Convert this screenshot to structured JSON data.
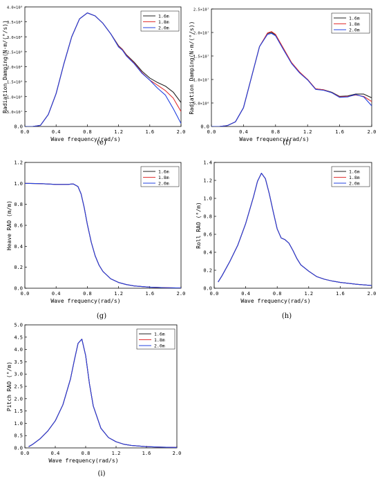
{
  "figure": {
    "colors": {
      "1.6m": "#222222",
      "1.8m": "#e03030",
      "2.0m": "#2040e0"
    }
  },
  "chart_data": [
    {
      "id": "e",
      "type": "line",
      "panel_label": "(e)",
      "xlabel": "Wave frequency(rad/s)",
      "ylabel": "Radiation Damping(N·m/(°/s))",
      "xlim": [
        0,
        2.0
      ],
      "ylim": [
        0,
        400000000.0
      ],
      "xticks": [
        "0.0",
        "0.4",
        "0.8",
        "1.2",
        "1.6",
        "2.0"
      ],
      "yticks": [
        "0.0",
        "5.0×10⁷",
        "1.0×10⁸",
        "1.5×10⁸",
        "2.0×10⁸",
        "2.5×10⁸",
        "3.0×10⁸",
        "3.5×10⁸",
        "4.0×10⁸"
      ],
      "yticks_values": [
        0,
        50000000.0,
        100000000.0,
        150000000.0,
        200000000.0,
        250000000.0,
        300000000.0,
        350000000.0,
        400000000.0
      ],
      "legend": [
        "1.6m",
        "1.8m",
        "2.0m"
      ],
      "legend_position": "top-right",
      "grid": false,
      "series": [
        {
          "name": "1.6m",
          "x": [
            0,
            0.1,
            0.2,
            0.3,
            0.4,
            0.5,
            0.6,
            0.7,
            0.8,
            0.9,
            1.0,
            1.1,
            1.2,
            1.25,
            1.3,
            1.4,
            1.5,
            1.6,
            1.7,
            1.8,
            1.9,
            2.0
          ],
          "y": [
            0,
            0,
            4000000.0,
            40000000.0,
            110000000.0,
            210000000.0,
            300000000.0,
            360000000.0,
            380000000.0,
            370000000.0,
            345000000.0,
            310000000.0,
            270000000.0,
            258000000.0,
            240000000.0,
            215000000.0,
            185000000.0,
            162000000.0,
            147000000.0,
            135000000.0,
            115000000.0,
            80000000.0
          ]
        },
        {
          "name": "1.8m",
          "x": [
            0,
            0.1,
            0.2,
            0.3,
            0.4,
            0.5,
            0.6,
            0.7,
            0.8,
            0.9,
            1.0,
            1.1,
            1.2,
            1.25,
            1.3,
            1.4,
            1.5,
            1.6,
            1.7,
            1.8,
            1.9,
            2.0
          ],
          "y": [
            0,
            0,
            4000000.0,
            40000000.0,
            110000000.0,
            210000000.0,
            300000000.0,
            360000000.0,
            380000000.0,
            370000000.0,
            345000000.0,
            310000000.0,
            268000000.0,
            257000000.0,
            238000000.0,
            212000000.0,
            180000000.0,
            155000000.0,
            138000000.0,
            120000000.0,
            95000000.0,
            50000000.0
          ]
        },
        {
          "name": "2.0m",
          "x": [
            0,
            0.1,
            0.2,
            0.3,
            0.4,
            0.5,
            0.6,
            0.7,
            0.8,
            0.9,
            1.0,
            1.1,
            1.2,
            1.25,
            1.3,
            1.4,
            1.5,
            1.6,
            1.7,
            1.8,
            1.9,
            2.0
          ],
          "y": [
            0,
            0,
            4000000.0,
            40000000.0,
            110000000.0,
            210000000.0,
            300000000.0,
            360000000.0,
            380000000.0,
            370000000.0,
            345000000.0,
            310000000.0,
            266000000.0,
            255000000.0,
            236000000.0,
            210000000.0,
            178000000.0,
            155000000.0,
            128000000.0,
            105000000.0,
            60000000.0,
            10000000.0
          ]
        }
      ]
    },
    {
      "id": "f",
      "type": "line",
      "panel_label": "(f)",
      "xlabel": "Wave frequency(rad/s)",
      "ylabel": "Radiation Damping(N·m/(°/s))",
      "xlim": [
        0,
        2.0
      ],
      "ylim": [
        0,
        25000000.0
      ],
      "xticks": [
        "0.0",
        "0.4",
        "0.8",
        "1.2",
        "1.6",
        "2.0"
      ],
      "yticks": [
        "0.0",
        "5.0×10⁶",
        "1.0×10⁷",
        "1.5×10⁷",
        "2.0×10⁷",
        "2.5×10⁷"
      ],
      "yticks_values": [
        0,
        5000000.0,
        10000000.0,
        15000000.0,
        20000000.0,
        25000000.0
      ],
      "legend": [
        "1.6m",
        "1.8m",
        "2.0m"
      ],
      "legend_position": "top-right",
      "grid": false,
      "series": [
        {
          "name": "1.6m",
          "x": [
            0,
            0.1,
            0.2,
            0.3,
            0.4,
            0.5,
            0.6,
            0.7,
            0.75,
            0.8,
            0.9,
            1.0,
            1.1,
            1.2,
            1.3,
            1.4,
            1.5,
            1.6,
            1.7,
            1.8,
            1.9,
            2.0
          ],
          "y": [
            0,
            0,
            200000.0,
            1000000.0,
            4000000.0,
            10500000.0,
            17000000.0,
            19800000.0,
            20000000.0,
            19500000.0,
            16500000.0,
            13500000.0,
            11500000.0,
            10000000.0,
            8000000.0,
            7800000.0,
            7300000.0,
            6400000.0,
            6500000.0,
            6900000.0,
            6900000.0,
            6100000.0
          ]
        },
        {
          "name": "1.8m",
          "x": [
            0,
            0.1,
            0.2,
            0.3,
            0.4,
            0.5,
            0.6,
            0.7,
            0.75,
            0.8,
            0.9,
            1.0,
            1.1,
            1.2,
            1.3,
            1.4,
            1.5,
            1.6,
            1.7,
            1.8,
            1.9,
            2.0
          ],
          "y": [
            0,
            0,
            200000.0,
            1000000.0,
            4000000.0,
            10500000.0,
            17000000.0,
            19900000.0,
            20200000.0,
            19600000.0,
            16600000.0,
            13600000.0,
            11600000.0,
            10000000.0,
            8000000.0,
            7800000.0,
            7200000.0,
            6300000.0,
            6400000.0,
            6700000.0,
            6400000.0,
            5300000.0
          ]
        },
        {
          "name": "2.0m",
          "x": [
            0,
            0.1,
            0.2,
            0.3,
            0.4,
            0.5,
            0.6,
            0.7,
            0.75,
            0.8,
            0.9,
            1.0,
            1.1,
            1.2,
            1.3,
            1.4,
            1.5,
            1.6,
            1.7,
            1.8,
            1.9,
            2.0
          ],
          "y": [
            0,
            0,
            200000.0,
            1000000.0,
            4000000.0,
            10500000.0,
            17000000.0,
            19600000.0,
            19800000.0,
            19300000.0,
            16300000.0,
            13400000.0,
            11400000.0,
            9900000.0,
            7900000.0,
            7700000.0,
            7200000.0,
            6200000.0,
            6300000.0,
            6800000.0,
            6300000.0,
            4400000.0
          ]
        }
      ]
    },
    {
      "id": "g",
      "type": "line",
      "panel_label": "(g)",
      "xlabel": "Wave frequency(rad/s)",
      "ylabel": "Heave RAO  (m/m)",
      "xlim": [
        0,
        2.0
      ],
      "ylim": [
        0,
        1.2
      ],
      "xticks": [
        "0.0",
        "0.4",
        "0.8",
        "1.2",
        "1.6",
        "2.0"
      ],
      "yticks": [
        "0.0",
        "0.2",
        "0.4",
        "0.6",
        "0.8",
        "1.0",
        "1.2"
      ],
      "yticks_values": [
        0,
        0.2,
        0.4,
        0.6,
        0.8,
        1.0,
        1.2
      ],
      "legend": [
        "1.6m",
        "1.8m",
        "2.0m"
      ],
      "legend_position": "top-right",
      "grid": false,
      "series": [
        {
          "name": "1.6m",
          "x": [
            0,
            0.2,
            0.4,
            0.55,
            0.62,
            0.68,
            0.72,
            0.76,
            0.8,
            0.85,
            0.9,
            0.95,
            1.0,
            1.1,
            1.2,
            1.3,
            1.4,
            1.6,
            1.8,
            2.0
          ],
          "y": [
            1.0,
            0.998,
            0.99,
            0.99,
            0.995,
            0.97,
            0.9,
            0.77,
            0.61,
            0.44,
            0.31,
            0.22,
            0.16,
            0.09,
            0.055,
            0.035,
            0.022,
            0.01,
            0.005,
            0.002
          ]
        },
        {
          "name": "1.8m",
          "x": [
            0,
            0.2,
            0.4,
            0.55,
            0.62,
            0.68,
            0.72,
            0.76,
            0.8,
            0.85,
            0.9,
            0.95,
            1.0,
            1.1,
            1.2,
            1.3,
            1.4,
            1.6,
            1.8,
            2.0
          ],
          "y": [
            1.0,
            0.998,
            0.99,
            0.99,
            0.995,
            0.97,
            0.9,
            0.77,
            0.61,
            0.44,
            0.31,
            0.22,
            0.16,
            0.09,
            0.055,
            0.035,
            0.022,
            0.01,
            0.005,
            0.002
          ]
        },
        {
          "name": "2.0m",
          "x": [
            0,
            0.2,
            0.4,
            0.55,
            0.62,
            0.68,
            0.72,
            0.76,
            0.8,
            0.85,
            0.9,
            0.95,
            1.0,
            1.1,
            1.2,
            1.3,
            1.4,
            1.6,
            1.8,
            2.0
          ],
          "y": [
            1.0,
            0.998,
            0.99,
            0.99,
            0.995,
            0.97,
            0.9,
            0.77,
            0.61,
            0.44,
            0.31,
            0.22,
            0.16,
            0.09,
            0.055,
            0.035,
            0.022,
            0.01,
            0.005,
            0.002
          ]
        }
      ]
    },
    {
      "id": "h",
      "type": "line",
      "panel_label": "(h)",
      "xlabel": "Wave frequency(rad/s)",
      "ylabel": "Roll RAO  (°/m)",
      "xlim": [
        0,
        2.0
      ],
      "ylim": [
        0,
        1.4
      ],
      "xticks": [
        "0.0",
        "0.4",
        "0.8",
        "1.2",
        "1.6",
        "2.0"
      ],
      "yticks": [
        "0.0",
        "0.2",
        "0.4",
        "0.6",
        "0.8",
        "1.0",
        "1.2",
        "1.4"
      ],
      "yticks_values": [
        0,
        0.2,
        0.4,
        0.6,
        0.8,
        1.0,
        1.2,
        1.4
      ],
      "legend": [
        "1.6m",
        "1.8m",
        "2.0m"
      ],
      "legend_position": "top-right",
      "grid": false,
      "series": [
        {
          "name": "1.6m",
          "x": [
            0.05,
            0.1,
            0.2,
            0.3,
            0.4,
            0.5,
            0.55,
            0.6,
            0.65,
            0.7,
            0.75,
            0.8,
            0.85,
            0.9,
            0.95,
            1.0,
            1.05,
            1.1,
            1.2,
            1.3,
            1.4,
            1.5,
            1.6,
            1.8,
            2.0
          ],
          "y": [
            0.07,
            0.14,
            0.3,
            0.48,
            0.72,
            1.02,
            1.19,
            1.28,
            1.22,
            1.05,
            0.85,
            0.66,
            0.56,
            0.54,
            0.5,
            0.42,
            0.33,
            0.26,
            0.19,
            0.13,
            0.1,
            0.08,
            0.065,
            0.045,
            0.03
          ]
        },
        {
          "name": "1.8m",
          "x": [
            0.05,
            0.1,
            0.2,
            0.3,
            0.4,
            0.5,
            0.55,
            0.6,
            0.65,
            0.7,
            0.75,
            0.8,
            0.85,
            0.9,
            0.95,
            1.0,
            1.05,
            1.1,
            1.2,
            1.3,
            1.4,
            1.5,
            1.6,
            1.8,
            2.0
          ],
          "y": [
            0.07,
            0.14,
            0.3,
            0.48,
            0.72,
            1.02,
            1.19,
            1.28,
            1.22,
            1.05,
            0.85,
            0.66,
            0.56,
            0.54,
            0.5,
            0.42,
            0.33,
            0.26,
            0.19,
            0.13,
            0.1,
            0.08,
            0.065,
            0.045,
            0.03
          ]
        },
        {
          "name": "2.0m",
          "x": [
            0.05,
            0.1,
            0.2,
            0.3,
            0.4,
            0.5,
            0.55,
            0.6,
            0.65,
            0.7,
            0.75,
            0.8,
            0.85,
            0.9,
            0.95,
            1.0,
            1.05,
            1.1,
            1.2,
            1.3,
            1.4,
            1.5,
            1.6,
            1.8,
            2.0
          ],
          "y": [
            0.07,
            0.14,
            0.3,
            0.48,
            0.72,
            1.02,
            1.19,
            1.28,
            1.22,
            1.05,
            0.85,
            0.66,
            0.56,
            0.54,
            0.5,
            0.42,
            0.33,
            0.26,
            0.19,
            0.13,
            0.1,
            0.08,
            0.065,
            0.045,
            0.03
          ]
        }
      ]
    },
    {
      "id": "i",
      "type": "line",
      "panel_label": "(i)",
      "xlabel": "Wave frequency(rad/s)",
      "ylabel": "Pitch RAO  (°/m)",
      "xlim": [
        0,
        2.0
      ],
      "ylim": [
        0,
        5.0
      ],
      "xticks": [
        "0.0",
        "0.4",
        "0.8",
        "1.2",
        "1.6",
        "2.0"
      ],
      "yticks": [
        "0.0",
        "0.5",
        "1.0",
        "1.5",
        "2.0",
        "2.5",
        "3.0",
        "3.5",
        "4.0",
        "4.5",
        "5.0"
      ],
      "yticks_values": [
        0,
        0.5,
        1.0,
        1.5,
        2.0,
        2.5,
        3.0,
        3.5,
        4.0,
        4.5,
        5.0
      ],
      "legend": [
        "1.6m",
        "1.8m",
        "2.0m"
      ],
      "legend_position": "top-right",
      "grid": false,
      "series": [
        {
          "name": "1.6m",
          "x": [
            0.05,
            0.1,
            0.2,
            0.3,
            0.4,
            0.5,
            0.6,
            0.65,
            0.7,
            0.75,
            0.8,
            0.85,
            0.9,
            1.0,
            1.1,
            1.2,
            1.3,
            1.4,
            1.6,
            1.8,
            2.0
          ],
          "y": [
            0.05,
            0.14,
            0.37,
            0.68,
            1.1,
            1.75,
            2.8,
            3.55,
            4.25,
            4.42,
            3.75,
            2.6,
            1.7,
            0.8,
            0.42,
            0.25,
            0.15,
            0.1,
            0.05,
            0.03,
            0.02
          ]
        },
        {
          "name": "1.8m",
          "x": [
            0.05,
            0.1,
            0.2,
            0.3,
            0.4,
            0.5,
            0.6,
            0.65,
            0.7,
            0.75,
            0.8,
            0.85,
            0.9,
            1.0,
            1.1,
            1.2,
            1.3,
            1.4,
            1.6,
            1.8,
            2.0
          ],
          "y": [
            0.05,
            0.14,
            0.37,
            0.68,
            1.1,
            1.75,
            2.8,
            3.55,
            4.25,
            4.42,
            3.75,
            2.6,
            1.7,
            0.8,
            0.42,
            0.25,
            0.15,
            0.1,
            0.05,
            0.03,
            0.02
          ]
        },
        {
          "name": "2.0m",
          "x": [
            0.05,
            0.1,
            0.2,
            0.3,
            0.4,
            0.5,
            0.6,
            0.65,
            0.7,
            0.75,
            0.8,
            0.85,
            0.9,
            1.0,
            1.1,
            1.2,
            1.3,
            1.4,
            1.6,
            1.8,
            2.0
          ],
          "y": [
            0.05,
            0.14,
            0.37,
            0.68,
            1.1,
            1.75,
            2.8,
            3.55,
            4.25,
            4.42,
            3.75,
            2.6,
            1.7,
            0.8,
            0.42,
            0.25,
            0.15,
            0.1,
            0.05,
            0.03,
            0.02
          ]
        }
      ]
    }
  ]
}
